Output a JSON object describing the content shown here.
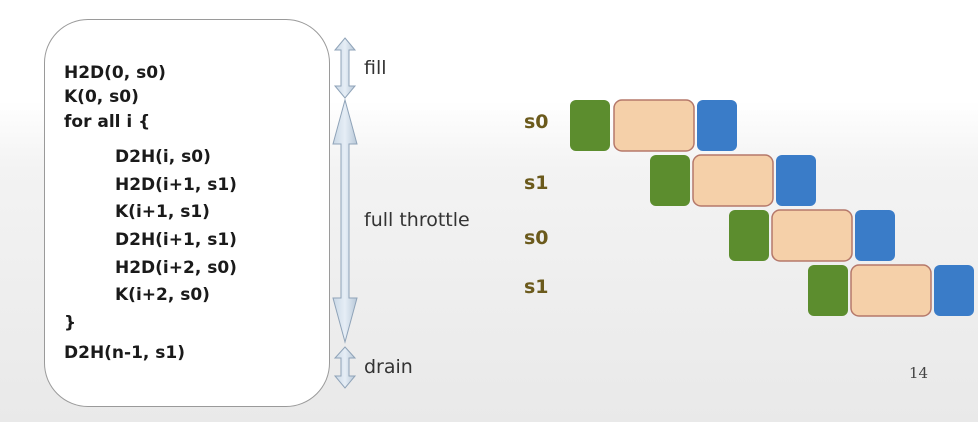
{
  "code": {
    "lines": [
      "H2D(0, s0)",
      "K(0, s0)",
      "for all i {",
      "D2H(i, s0)",
      "H2D(i+1, s1)",
      "K(i+1, s1)",
      "D2H(i+1, s1)",
      "H2D(i+2, s0)",
      "K(i+2, s0)",
      "}",
      "D2H(n-1, s1)"
    ]
  },
  "phases": {
    "fill": "fill",
    "full_throttle": "full throttle",
    "drain": "drain"
  },
  "timeline": {
    "rows": [
      {
        "stream": "s0"
      },
      {
        "stream": "s1"
      },
      {
        "stream": "s0"
      },
      {
        "stream": "s1"
      }
    ],
    "colors": {
      "h2d": "#5c8d2e",
      "kernel": "#f5d0a9",
      "d2h": "#3a7cc8",
      "kernel_border": "#b5786a"
    }
  },
  "page_number": "14"
}
